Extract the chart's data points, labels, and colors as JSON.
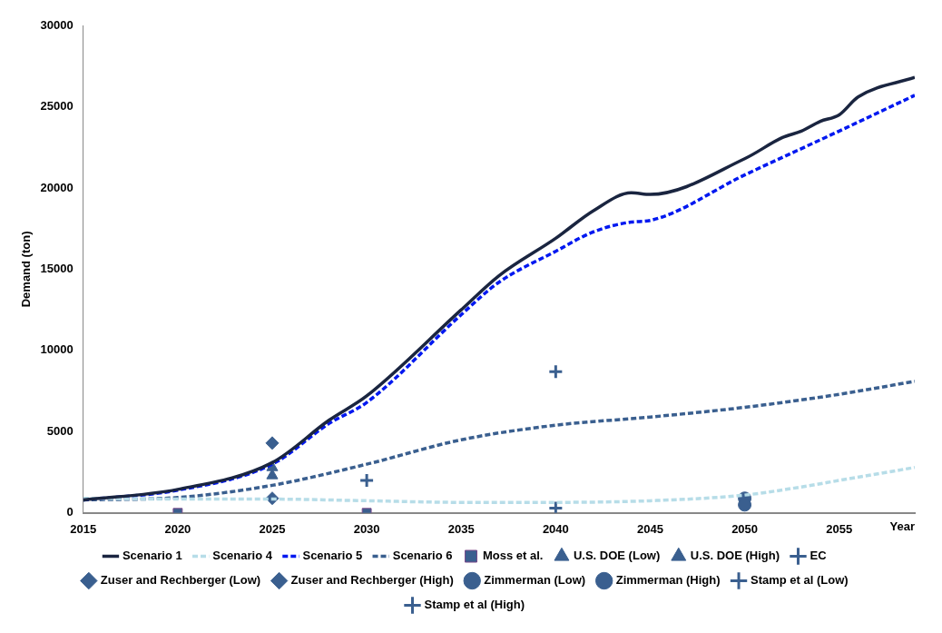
{
  "chart_data": {
    "type": "line",
    "ylabel": "Demand (ton)",
    "xlabel": "Year",
    "xlim": [
      2015,
      2059
    ],
    "xticks": [
      2015,
      2020,
      2025,
      2030,
      2035,
      2040,
      2045,
      2050,
      2055
    ],
    "ylim": [
      0,
      30000
    ],
    "yticks": [
      0,
      5000,
      10000,
      15000,
      20000,
      25000,
      30000
    ],
    "grid": false,
    "legend": "bottom",
    "series": [
      {
        "name": "Scenario 1",
        "color": "#1a2540",
        "line_style": "solid",
        "marker": "none",
        "x": [
          2015,
          2020,
          2025,
          2028,
          2030,
          2035,
          2037,
          2040,
          2042,
          2044,
          2045,
          2050,
          2052,
          2053,
          2054,
          2055,
          2056,
          2059
        ],
        "values": [
          800,
          1450,
          3100,
          5700,
          7200,
          12500,
          14600,
          16900,
          18600,
          19700,
          19600,
          21800,
          23100,
          23500,
          24100,
          24500,
          25600,
          26800
        ]
      },
      {
        "name": "Scenario 4",
        "color": "#b7dde8",
        "line_style": "dashed",
        "marker": "none",
        "x": [
          2015,
          2020,
          2025,
          2030,
          2035,
          2040,
          2045,
          2050,
          2053,
          2055,
          2059
        ],
        "values": [
          900,
          850,
          850,
          750,
          650,
          650,
          750,
          1100,
          1600,
          2000,
          2800
        ]
      },
      {
        "name": "Scenario 5",
        "color": "#0018f0",
        "line_style": "dashed",
        "marker": "none",
        "x": [
          2015,
          2020,
          2025,
          2028,
          2030,
          2035,
          2037,
          2040,
          2042,
          2044,
          2045,
          2050,
          2055,
          2059
        ],
        "values": [
          800,
          1400,
          3000,
          5500,
          6800,
          12200,
          14200,
          16100,
          17300,
          17900,
          18000,
          20800,
          23500,
          25700
        ]
      },
      {
        "name": "Scenario 6",
        "color": "#3a5f8f",
        "line_style": "dashed",
        "marker": "none",
        "x": [
          2015,
          2020,
          2025,
          2030,
          2035,
          2040,
          2045,
          2050,
          2055,
          2059
        ],
        "values": [
          800,
          950,
          1700,
          3000,
          4500,
          5400,
          5900,
          6500,
          7300,
          8100
        ]
      },
      {
        "name": "Moss et al.",
        "type": "scatter",
        "color": "#3a5f8f",
        "marker": "square",
        "x": [
          2020,
          2030
        ],
        "values": [
          0,
          0
        ]
      },
      {
        "name": "U.S. DOE (Low)",
        "type": "scatter",
        "color": "#3a5f8f",
        "marker": "triangle",
        "x": [
          2025
        ],
        "values": [
          2300
        ]
      },
      {
        "name": "U.S. DOE (High)",
        "type": "scatter",
        "color": "#3a5f8f",
        "marker": "triangle",
        "x": [
          2025
        ],
        "values": [
          2800
        ]
      },
      {
        "name": "EC",
        "type": "scatter",
        "color": "#3a5f8f",
        "marker": "cross",
        "x": [
          2030
        ],
        "values": [
          2000
        ]
      },
      {
        "name": "Zuser and Rechberger (Low)",
        "type": "scatter",
        "color": "#3a5f8f",
        "marker": "diamond",
        "x": [
          2025
        ],
        "values": [
          900
        ]
      },
      {
        "name": "Zuser and Rechberger (High)",
        "type": "scatter",
        "color": "#3a5f8f",
        "marker": "diamond",
        "x": [
          2025
        ],
        "values": [
          4300
        ]
      },
      {
        "name": "Zimmerman (Low)",
        "type": "scatter",
        "color": "#3a5f8f",
        "marker": "circle",
        "x": [
          2050
        ],
        "values": [
          500
        ]
      },
      {
        "name": "Zimmerman (High)",
        "type": "scatter",
        "color": "#3a5f8f",
        "marker": "circle",
        "x": [
          2050
        ],
        "values": [
          900
        ]
      },
      {
        "name": "Stamp et al (Low)",
        "type": "scatter",
        "color": "#3a5f8f",
        "marker": "cross",
        "x": [
          2040
        ],
        "values": [
          300
        ]
      },
      {
        "name": "Stamp et al (High)",
        "type": "scatter",
        "color": "#3a5f8f",
        "marker": "cross",
        "x": [
          2040
        ],
        "values": [
          8700
        ]
      }
    ]
  }
}
